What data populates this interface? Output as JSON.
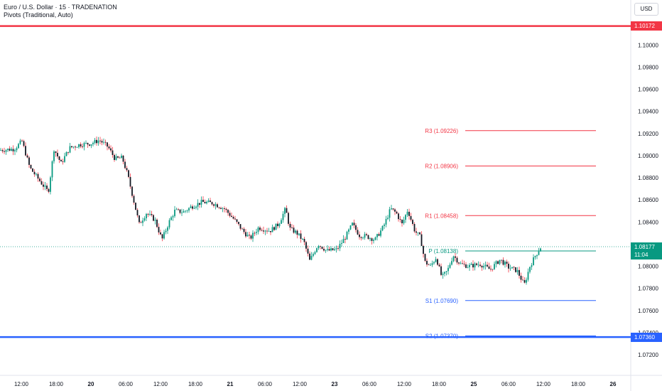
{
  "legend": {
    "title": "Euro / U.S. Dollar · 15 · TRADENATION",
    "indicator": "Pivots (Traditional, Auto)"
  },
  "currency": "USD",
  "colors": {
    "red_line": "#f23645",
    "blue_line": "#2962ff",
    "pivot": "#089981",
    "resistance": "#f23645",
    "support": "#2962ff",
    "up_candle": "#089981",
    "down_candle": "#f23645",
    "candle_body": "#131722"
  },
  "horizontal_lines": {
    "top": {
      "price": "1.10172",
      "value": 1.10172
    },
    "bottom": {
      "price": "1.07360",
      "value": 1.0736
    }
  },
  "current_price": {
    "price": "1.08177",
    "countdown": "11:04",
    "value": 1.08177
  },
  "chart_data": {
    "type": "candlestick",
    "symbol": "Euro / U.S. Dollar",
    "timeframe": "15",
    "y_axis": {
      "ticks": [
        "1.10000",
        "1.09800",
        "1.09600",
        "1.09400",
        "1.09200",
        "1.09000",
        "1.08800",
        "1.08600",
        "1.08400",
        "1.08000",
        "1.07800",
        "1.07600",
        "1.07400",
        "1.07200"
      ],
      "ylim": [
        1.0711,
        1.1033
      ]
    },
    "x_axis": {
      "ticks": [
        "12:00",
        "18:00",
        "20",
        "06:00",
        "12:00",
        "18:00",
        "21",
        "06:00",
        "12:00",
        "23",
        "06:00",
        "12:00",
        "18:00",
        "25",
        "06:00",
        "12:00",
        "18:00",
        "26"
      ]
    },
    "pivots": [
      {
        "label": "R3 (1.09226)",
        "value": 1.09226,
        "kind": "resistance"
      },
      {
        "label": "R2 (1.08906)",
        "value": 1.08906,
        "kind": "resistance"
      },
      {
        "label": "R1 (1.08458)",
        "value": 1.08458,
        "kind": "resistance"
      },
      {
        "label": "P (1.08138)",
        "value": 1.08138,
        "kind": "pivot"
      },
      {
        "label": "S1 (1.07690)",
        "value": 1.0769,
        "kind": "support"
      },
      {
        "label": "S2 (1.07370)",
        "value": 1.0737,
        "kind": "support"
      }
    ],
    "close_path": [
      [
        0,
        1.0905
      ],
      [
        20,
        1.0906
      ],
      [
        31,
        1.0913
      ],
      [
        42,
        1.0889
      ],
      [
        55,
        1.0878
      ],
      [
        68,
        1.0867
      ],
      [
        76,
        1.0906
      ],
      [
        86,
        1.0893
      ],
      [
        98,
        1.0907
      ],
      [
        112,
        1.091
      ],
      [
        128,
        1.0911
      ],
      [
        140,
        1.0914
      ],
      [
        152,
        1.0908
      ],
      [
        162,
        1.0897
      ],
      [
        172,
        1.0898
      ],
      [
        180,
        1.0882
      ],
      [
        188,
        1.086
      ],
      [
        196,
        1.0838
      ],
      [
        206,
        1.0848
      ],
      [
        218,
        1.0842
      ],
      [
        228,
        1.0824
      ],
      [
        238,
        1.084
      ],
      [
        246,
        1.085
      ],
      [
        258,
        1.0849
      ],
      [
        270,
        1.0854
      ],
      [
        284,
        1.0858
      ],
      [
        300,
        1.0857
      ],
      [
        316,
        1.0852
      ],
      [
        330,
        1.0842
      ],
      [
        342,
        1.0832
      ],
      [
        352,
        1.0825
      ],
      [
        364,
        1.0835
      ],
      [
        380,
        1.0832
      ],
      [
        392,
        1.0838
      ],
      [
        402,
        1.0852
      ],
      [
        408,
        1.0834
      ],
      [
        418,
        1.083
      ],
      [
        428,
        1.0822
      ],
      [
        436,
        1.0805
      ],
      [
        448,
        1.082
      ],
      [
        460,
        1.0814
      ],
      [
        474,
        1.0815
      ],
      [
        486,
        1.0826
      ],
      [
        496,
        1.0838
      ],
      [
        506,
        1.0828
      ],
      [
        516,
        1.0827
      ],
      [
        528,
        1.0824
      ],
      [
        540,
        1.0836
      ],
      [
        550,
        1.0852
      ],
      [
        558,
        1.0848
      ],
      [
        566,
        1.0838
      ],
      [
        574,
        1.0851
      ],
      [
        584,
        1.0832
      ],
      [
        592,
        1.0826
      ],
      [
        598,
        1.0804
      ],
      [
        606,
        1.08
      ],
      [
        614,
        1.0808
      ],
      [
        622,
        1.079
      ],
      [
        630,
        1.0796
      ],
      [
        638,
        1.081
      ],
      [
        648,
        1.0802
      ],
      [
        660,
        1.08
      ],
      [
        676,
        1.0802
      ],
      [
        690,
        1.0797
      ],
      [
        704,
        1.0806
      ],
      [
        716,
        1.0799
      ],
      [
        728,
        1.0796
      ],
      [
        738,
        1.0783
      ],
      [
        746,
        1.08
      ],
      [
        754,
        1.081
      ],
      [
        762,
        1.0818
      ]
    ]
  }
}
